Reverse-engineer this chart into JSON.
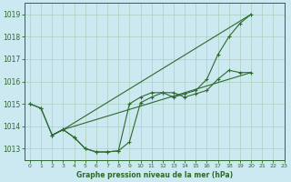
{
  "title": "Graphe pression niveau de la mer (hPa)",
  "background_color": "#cce8f0",
  "grid_color": "#aacfbf",
  "line_color": "#2d6a2d",
  "xlim": [
    -0.5,
    23
  ],
  "ylim": [
    1012.5,
    1019.5
  ],
  "yticks": [
    1013,
    1014,
    1015,
    1016,
    1017,
    1018,
    1019
  ],
  "xticks": [
    0,
    1,
    2,
    3,
    4,
    5,
    6,
    7,
    8,
    9,
    10,
    11,
    12,
    13,
    14,
    15,
    16,
    17,
    18,
    19,
    20,
    21,
    22,
    23
  ],
  "curve1_x": [
    0,
    1,
    2,
    3,
    4,
    5,
    6,
    7,
    8,
    9,
    10,
    11,
    12,
    13,
    14,
    15,
    16,
    17,
    18,
    19,
    20
  ],
  "curve1_y": [
    1015.0,
    1014.8,
    1013.6,
    1013.85,
    1013.5,
    1013.0,
    1012.85,
    1012.85,
    1012.9,
    1013.3,
    1015.05,
    1015.3,
    1015.5,
    1015.5,
    1015.3,
    1015.45,
    1015.6,
    1016.1,
    1016.5,
    1016.4,
    1016.4
  ],
  "curve2_x": [
    0,
    1,
    2,
    3,
    4,
    5,
    6,
    7,
    8,
    9,
    10,
    11,
    12,
    13,
    14,
    15,
    16,
    17,
    18,
    19,
    20
  ],
  "curve2_y": [
    1015.0,
    1014.8,
    1013.6,
    1013.85,
    1013.5,
    1013.0,
    1012.85,
    1012.85,
    1012.9,
    1015.0,
    1015.3,
    1015.5,
    1015.5,
    1015.3,
    1015.45,
    1015.6,
    1016.1,
    1017.2,
    1018.0,
    1018.6,
    1019.0
  ],
  "curve3_x": [
    2,
    3,
    20
  ],
  "curve3_y": [
    1013.6,
    1013.85,
    1019.0
  ],
  "curve4_x": [
    2,
    3,
    20
  ],
  "curve4_y": [
    1013.6,
    1013.85,
    1016.4
  ]
}
